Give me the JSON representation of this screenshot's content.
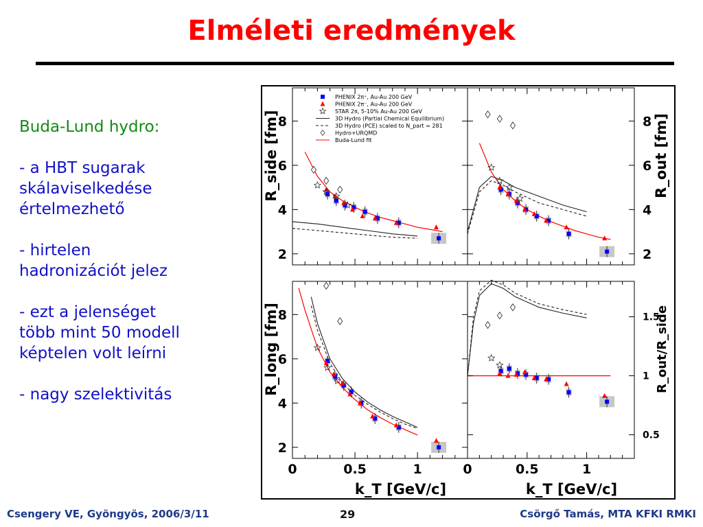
{
  "slide": {
    "title": "Elméleti eredmények",
    "bullets_lead": "Buda-Lund hydro:",
    "bullets": [
      "- a HBT sugarak\nskálaviselkedése\nértelmezhető",
      "- hirtelen\nhadronizációt jelez",
      "- ezt a jelenséget\ntöbb mint 50 modell\nképtelen volt leírni",
      "- nagy szelektivitás"
    ]
  },
  "footer": {
    "left": "Csengery VE, Gyöngyös, 2006/3/11",
    "page": "29",
    "right": "Csörgő Tamás, MTA KFKI RMKI"
  },
  "colors": {
    "title": "#ff0000",
    "bullets": "#1010c8",
    "lead": "#138a13",
    "footer": "#1e3a8a",
    "phenix_plus": "#0000ff",
    "phenix_minus": "#ff0000",
    "buda_lund": "#ff0000"
  },
  "chart_data": [
    {
      "type": "scatter",
      "panel": "R_side",
      "ylabel": "R_side [fm]",
      "xlim": [
        0,
        1.4
      ],
      "ylim": [
        1.5,
        9.5
      ],
      "yticks": [
        2,
        4,
        6,
        8
      ],
      "legend": {
        "placement": "top",
        "entries": [
          "PHENIX 2π⁺, Au-Au 200 GeV",
          "PHENIX 2π⁻, Au-Au 200 GeV",
          "STAR 2π, 5-10% Au-Au 200 GeV",
          "3D Hydro (Partial Chemical Equilibrium)",
          "3D Hydro (PCE) scaled to N_part = 281",
          "Hydro+URQMD",
          "Buda-Lund fit"
        ]
      },
      "series": [
        {
          "name": "PHENIX 2π⁺, Au-Au 200 GeV",
          "x": [
            0.28,
            0.35,
            0.42,
            0.49,
            0.58,
            0.68,
            0.85,
            1.17
          ],
          "y": [
            4.7,
            4.4,
            4.2,
            4.1,
            3.9,
            3.6,
            3.4,
            2.7
          ]
        },
        {
          "name": "PHENIX 2π⁻, Au-Au 200 GeV",
          "x": [
            0.27,
            0.34,
            0.41,
            0.48,
            0.56,
            0.66,
            0.83,
            1.15
          ],
          "y": [
            4.9,
            4.6,
            4.3,
            4.0,
            3.7,
            3.6,
            3.4,
            3.2
          ]
        },
        {
          "name": "STAR 2π, 5-10% Au-Au 200 GeV",
          "x": [
            0.2,
            0.27,
            0.35,
            0.44
          ],
          "y": [
            5.1,
            4.8,
            4.6,
            4.2
          ]
        },
        {
          "name": "Hydro+URQMD",
          "x": [
            0.17,
            0.27,
            0.38
          ],
          "y": [
            5.8,
            5.3,
            4.9
          ]
        },
        {
          "name": "Buda-Lund fit",
          "x": [
            0.1,
            0.2,
            0.3,
            0.4,
            0.5,
            0.6,
            0.7,
            0.8,
            0.9,
            1.0,
            1.1,
            1.2
          ],
          "y": [
            6.6,
            5.5,
            4.8,
            4.4,
            4.1,
            3.85,
            3.65,
            3.5,
            3.35,
            3.2,
            3.1,
            3.0
          ]
        },
        {
          "name": "3D Hydro (Partial Chemical Equilibrium)",
          "x": [
            0,
            0.2,
            0.4,
            0.6,
            0.8,
            1.0
          ],
          "y": [
            3.45,
            3.35,
            3.2,
            3.05,
            2.9,
            2.8
          ]
        },
        {
          "name": "3D Hydro (PCE) scaled to N_part = 281",
          "x": [
            0,
            0.2,
            0.4,
            0.6,
            0.8,
            1.0
          ],
          "y": [
            3.15,
            3.05,
            2.95,
            2.85,
            2.75,
            2.7
          ]
        }
      ]
    },
    {
      "type": "scatter",
      "panel": "R_out",
      "ylabel": "R_out [fm]",
      "xlim": [
        0,
        1.4
      ],
      "ylim": [
        1.5,
        9.5
      ],
      "yticks": [
        2,
        4,
        6,
        8
      ],
      "series": [
        {
          "name": "PHENIX 2π⁺, Au-Au 200 GeV",
          "x": [
            0.28,
            0.35,
            0.42,
            0.49,
            0.58,
            0.68,
            0.85,
            1.17
          ],
          "y": [
            4.9,
            4.7,
            4.3,
            4.0,
            3.7,
            3.5,
            2.9,
            2.1
          ]
        },
        {
          "name": "PHENIX 2π⁻, Au-Au 200 GeV",
          "x": [
            0.27,
            0.34,
            0.41,
            0.48,
            0.56,
            0.66,
            0.83,
            1.15
          ],
          "y": [
            5.0,
            4.7,
            4.4,
            4.0,
            3.8,
            3.5,
            3.2,
            2.7
          ]
        },
        {
          "name": "STAR 2π, 5-10% Au-Au 200 GeV",
          "x": [
            0.2,
            0.27,
            0.35,
            0.44
          ],
          "y": [
            5.9,
            5.3,
            5.0,
            4.5
          ]
        },
        {
          "name": "Hydro+URQMD",
          "x": [
            0.17,
            0.27,
            0.38
          ],
          "y": [
            8.3,
            8.1,
            7.8
          ]
        },
        {
          "name": "Buda-Lund fit",
          "x": [
            0.1,
            0.2,
            0.3,
            0.4,
            0.5,
            0.6,
            0.7,
            0.8,
            0.9,
            1.0,
            1.1,
            1.2
          ],
          "y": [
            7.0,
            5.7,
            4.9,
            4.4,
            4.0,
            3.7,
            3.45,
            3.25,
            3.05,
            2.9,
            2.75,
            2.65
          ]
        },
        {
          "name": "3D Hydro (Partial Chemical Equilibrium)",
          "x": [
            0,
            0.1,
            0.2,
            0.3,
            0.4,
            0.6,
            0.8,
            1.0
          ],
          "y": [
            3.0,
            5.0,
            5.5,
            5.3,
            5.0,
            4.6,
            4.2,
            3.9
          ]
        },
        {
          "name": "3D Hydro (PCE) scaled to N_part = 281",
          "x": [
            0,
            0.1,
            0.2,
            0.3,
            0.4,
            0.6,
            0.8,
            1.0
          ],
          "y": [
            2.9,
            4.8,
            5.3,
            5.1,
            4.8,
            4.3,
            4.0,
            3.7
          ]
        }
      ]
    },
    {
      "type": "scatter",
      "panel": "R_long",
      "ylabel": "R_long [fm]",
      "xlabel": "k_T [GeV/c]",
      "xlim": [
        0,
        1.4
      ],
      "ylim": [
        1.5,
        9.5
      ],
      "xticks": [
        0,
        0.5,
        1
      ],
      "yticks": [
        2,
        4,
        6,
        8
      ],
      "series": [
        {
          "name": "PHENIX 2π⁺, Au-Au 200 GeV",
          "x": [
            0.28,
            0.34,
            0.41,
            0.47,
            0.55,
            0.66,
            0.85,
            1.17
          ],
          "y": [
            5.9,
            5.2,
            4.8,
            4.5,
            4.0,
            3.3,
            2.9,
            2.0
          ]
        },
        {
          "name": "PHENIX 2π⁻, Au-Au 200 GeV",
          "x": [
            0.27,
            0.33,
            0.4,
            0.46,
            0.54,
            0.64,
            0.83,
            1.15
          ],
          "y": [
            5.8,
            5.3,
            4.9,
            4.4,
            4.0,
            3.4,
            3.0,
            2.3
          ]
        },
        {
          "name": "STAR 2π, 5-10% Au-Au 200 GeV",
          "x": [
            0.2,
            0.28,
            0.36
          ],
          "y": [
            6.5,
            5.6,
            5.0
          ]
        },
        {
          "name": "Hydro+URQMD",
          "x": [
            0.27,
            0.38
          ],
          "y": [
            9.3,
            7.7
          ]
        },
        {
          "name": "Buda-Lund fit",
          "x": [
            0.05,
            0.1,
            0.2,
            0.3,
            0.4,
            0.5,
            0.6,
            0.7,
            0.8,
            0.9,
            1.0
          ],
          "y": [
            9.2,
            8.2,
            6.5,
            5.4,
            4.7,
            4.15,
            3.7,
            3.35,
            3.05,
            2.8,
            2.55
          ]
        },
        {
          "name": "3D Hydro (Partial Chemical Equilibrium)",
          "x": [
            0.15,
            0.2,
            0.3,
            0.4,
            0.5,
            0.6,
            0.7,
            0.8,
            0.9,
            1.0
          ],
          "y": [
            8.8,
            7.6,
            6.0,
            5.1,
            4.5,
            4.05,
            3.7,
            3.4,
            3.15,
            2.9
          ]
        },
        {
          "name": "3D Hydro (PCE) scaled to N_part = 281",
          "x": [
            0.15,
            0.2,
            0.3,
            0.4,
            0.5,
            0.6,
            0.7,
            0.8,
            0.9,
            1.0
          ],
          "y": [
            8.4,
            7.3,
            5.8,
            4.9,
            4.35,
            3.95,
            3.6,
            3.3,
            3.05,
            2.85
          ]
        }
      ]
    },
    {
      "type": "scatter",
      "panel": "R_out/R_side",
      "ylabel": "R_out/R_side",
      "xlabel": "k_T [GeV/c]",
      "xlim": [
        0,
        1.4
      ],
      "ylim": [
        0.3,
        1.8
      ],
      "xticks": [
        0,
        0.5,
        1
      ],
      "yticks": [
        0.5,
        1,
        1.5
      ],
      "series": [
        {
          "name": "PHENIX 2π⁺, Au-Au 200 GeV",
          "x": [
            0.28,
            0.35,
            0.42,
            0.49,
            0.58,
            0.68,
            0.85,
            1.17
          ],
          "y": [
            1.04,
            1.06,
            1.02,
            1.01,
            0.98,
            0.97,
            0.86,
            0.78
          ]
        },
        {
          "name": "PHENIX 2π⁻, Au-Au 200 GeV",
          "x": [
            0.27,
            0.34,
            0.41,
            0.48,
            0.56,
            0.66,
            0.83,
            1.15
          ],
          "y": [
            1.02,
            1.0,
            1.01,
            1.03,
            0.98,
            0.97,
            0.93,
            0.83
          ]
        },
        {
          "name": "STAR 2π, 5-10% Au-Au 200 GeV",
          "x": [
            0.2,
            0.27
          ],
          "y": [
            1.15,
            1.09
          ]
        },
        {
          "name": "Hydro+URQMD",
          "x": [
            0.17,
            0.27,
            0.38
          ],
          "y": [
            1.43,
            1.51,
            1.58
          ]
        },
        {
          "name": "Buda-Lund fit",
          "x": [
            0,
            0.3,
            0.6,
            0.9,
            1.2
          ],
          "y": [
            1.0,
            1.0,
            1.0,
            1.0,
            1.0
          ]
        },
        {
          "name": "3D Hydro (Partial Chemical Equilibrium)",
          "x": [
            0,
            0.05,
            0.1,
            0.2,
            0.3,
            0.4,
            0.6,
            0.8,
            1.0
          ],
          "y": [
            1.0,
            1.45,
            1.68,
            1.78,
            1.74,
            1.67,
            1.58,
            1.53,
            1.49
          ]
        },
        {
          "name": "3D Hydro (PCE) scaled to N_part = 281",
          "x": [
            0,
            0.05,
            0.1,
            0.2,
            0.3,
            0.4,
            0.6,
            0.8,
            1.0
          ],
          "y": [
            1.0,
            1.5,
            1.72,
            1.81,
            1.77,
            1.7,
            1.61,
            1.56,
            1.52
          ]
        }
      ]
    }
  ]
}
